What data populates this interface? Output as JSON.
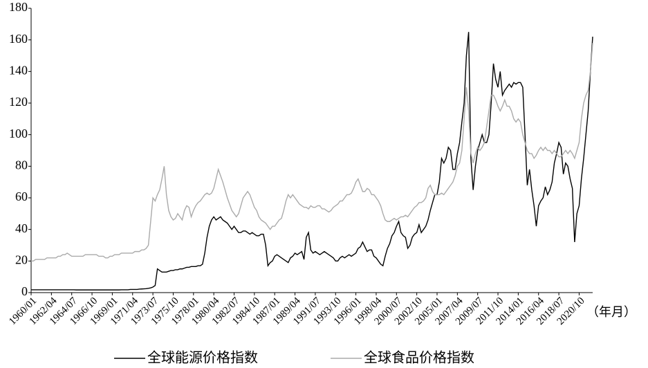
{
  "chart_data": {
    "type": "line",
    "x_label": "（年月）",
    "categories": [
      "1960/01",
      null,
      null,
      null,
      null,
      null,
      null,
      null,
      null,
      "1962/04",
      null,
      null,
      null,
      null,
      null,
      null,
      null,
      null,
      "1964/07",
      null,
      null,
      null,
      null,
      null,
      null,
      null,
      null,
      "1966/10",
      null,
      null,
      null,
      null,
      null,
      null,
      null,
      null,
      "1969/01",
      null,
      null,
      null,
      null,
      null,
      null,
      null,
      null,
      "1971/04",
      null,
      null,
      null,
      null,
      null,
      null,
      null,
      null,
      "1973/07",
      null,
      null,
      null,
      null,
      null,
      null,
      null,
      null,
      "1975/10",
      null,
      null,
      null,
      null,
      null,
      null,
      null,
      null,
      "1978/01",
      null,
      null,
      null,
      null,
      null,
      null,
      null,
      null,
      "1980/04",
      null,
      null,
      null,
      null,
      null,
      null,
      null,
      null,
      "1982/07",
      null,
      null,
      null,
      null,
      null,
      null,
      null,
      null,
      "1984/10",
      null,
      null,
      null,
      null,
      null,
      null,
      null,
      null,
      "1987/01",
      null,
      null,
      null,
      null,
      null,
      null,
      null,
      null,
      "1989/04",
      null,
      null,
      null,
      null,
      null,
      null,
      null,
      null,
      "1991/07",
      null,
      null,
      null,
      null,
      null,
      null,
      null,
      null,
      "1993/10",
      null,
      null,
      null,
      null,
      null,
      null,
      null,
      null,
      "1996/01",
      null,
      null,
      null,
      null,
      null,
      null,
      null,
      null,
      "1998/04",
      null,
      null,
      null,
      null,
      null,
      null,
      null,
      null,
      "2000/07",
      null,
      null,
      null,
      null,
      null,
      null,
      null,
      null,
      "2002/10",
      null,
      null,
      null,
      null,
      null,
      null,
      null,
      null,
      "2005/01",
      null,
      null,
      null,
      null,
      null,
      null,
      null,
      null,
      "2007/04",
      null,
      null,
      null,
      null,
      null,
      null,
      null,
      null,
      "2009/07",
      null,
      null,
      null,
      null,
      null,
      null,
      null,
      null,
      "2011/10",
      null,
      null,
      null,
      null,
      null,
      null,
      null,
      null,
      "2014/01",
      null,
      null,
      null,
      null,
      null,
      null,
      null,
      null,
      "2016/04",
      null,
      null,
      null,
      null,
      null,
      null,
      null,
      null,
      "2018/07",
      null,
      null,
      null,
      null,
      null,
      null,
      null,
      null,
      "2020/10",
      null,
      null,
      null,
      null,
      null,
      null
    ],
    "series": [
      {
        "name": "全球能源价格指数",
        "color": "#000000",
        "values": [
          1.8,
          1.8,
          1.8,
          1.8,
          1.8,
          1.8,
          1.8,
          1.8,
          1.8,
          1.8,
          1.8,
          1.8,
          1.8,
          1.8,
          1.8,
          1.8,
          1.8,
          1.8,
          1.8,
          1.8,
          1.7,
          1.7,
          1.7,
          1.7,
          1.7,
          1.7,
          1.7,
          1.7,
          1.7,
          1.7,
          1.7,
          1.7,
          1.7,
          1.7,
          1.7,
          1.7,
          1.7,
          1.7,
          1.7,
          1.7,
          1.8,
          1.8,
          1.8,
          1.8,
          2,
          2,
          2,
          2,
          2.2,
          2.3,
          2.4,
          2.5,
          2.7,
          3,
          3.5,
          4.5,
          15,
          14,
          13,
          13,
          13,
          13.5,
          14,
          14,
          14.5,
          14.5,
          15,
          15,
          15.5,
          16,
          16,
          16.5,
          16.5,
          16.5,
          17,
          17,
          18,
          25,
          35,
          42,
          46,
          48,
          46,
          47,
          48,
          46,
          45,
          44,
          42,
          40,
          42,
          40,
          38,
          38,
          39,
          39,
          38,
          37,
          38,
          37,
          36,
          36,
          37,
          37,
          30,
          17,
          19,
          20,
          23,
          24,
          23,
          22,
          21,
          20,
          19,
          22,
          23,
          25,
          24,
          25,
          26,
          21,
          35,
          38,
          27,
          25,
          26,
          25,
          24,
          25,
          26,
          25,
          24,
          23,
          22,
          20,
          20,
          22,
          23,
          22,
          23,
          24,
          23,
          24,
          25,
          28,
          29,
          32,
          29,
          26,
          27,
          27,
          23,
          22,
          20,
          18,
          17,
          23,
          28,
          31,
          36,
          38,
          42,
          45,
          38,
          36,
          35,
          28,
          30,
          35,
          37,
          38,
          43,
          38,
          40,
          42,
          46,
          52,
          57,
          62,
          62,
          70,
          85,
          82,
          85,
          92,
          90,
          78,
          78,
          88,
          95,
          108,
          120,
          150,
          165,
          85,
          65,
          80,
          90,
          95,
          100,
          95,
          95,
          100,
          120,
          145,
          135,
          130,
          140,
          125,
          128,
          130,
          132,
          130,
          133,
          132,
          133,
          133,
          130,
          100,
          68,
          78,
          65,
          55,
          42,
          55,
          58,
          60,
          67,
          62,
          65,
          70,
          82,
          88,
          95,
          92,
          75,
          82,
          80,
          72,
          66,
          32,
          50,
          55,
          72,
          85,
          100,
          115,
          140,
          162
        ]
      },
      {
        "name": "全球食品价格指数",
        "color": "#aaaaaa",
        "values": [
          20,
          20,
          21,
          21,
          21,
          21,
          21,
          22,
          22,
          22,
          22,
          22,
          23,
          23,
          24,
          24,
          25,
          24,
          23,
          23,
          23,
          23,
          23,
          23,
          24,
          24,
          24,
          24,
          24,
          24,
          23,
          23,
          23,
          22,
          22,
          23,
          23,
          24,
          24,
          24,
          25,
          25,
          25,
          25,
          25,
          25,
          26,
          26,
          26,
          27,
          27,
          28,
          30,
          45,
          60,
          58,
          62,
          65,
          72,
          80,
          62,
          52,
          48,
          46,
          47,
          50,
          48,
          46,
          52,
          55,
          54,
          48,
          52,
          55,
          57,
          58,
          60,
          62,
          63,
          62,
          63,
          66,
          72,
          78,
          74,
          70,
          65,
          60,
          56,
          52,
          50,
          48,
          50,
          55,
          60,
          62,
          64,
          62,
          58,
          54,
          52,
          48,
          46,
          45,
          44,
          42,
          40,
          42,
          42,
          44,
          46,
          47,
          52,
          58,
          62,
          60,
          62,
          60,
          58,
          56,
          55,
          54,
          54,
          53,
          55,
          54,
          54,
          55,
          55,
          53,
          53,
          52,
          51,
          52,
          54,
          55,
          56,
          58,
          58,
          60,
          62,
          62,
          63,
          66,
          70,
          72,
          68,
          64,
          64,
          66,
          65,
          62,
          62,
          60,
          58,
          55,
          50,
          46,
          45,
          45,
          46,
          47,
          46,
          47,
          48,
          48,
          49,
          48,
          50,
          52,
          54,
          55,
          57,
          57,
          58,
          60,
          66,
          68,
          64,
          62,
          62,
          62,
          63,
          62,
          64,
          66,
          68,
          70,
          74,
          80,
          82,
          90,
          110,
          130,
          115,
          88,
          82,
          88,
          92,
          90,
          92,
          95,
          105,
          115,
          125,
          125,
          122,
          118,
          115,
          118,
          122,
          118,
          118,
          115,
          110,
          108,
          110,
          108,
          100,
          95,
          90,
          88,
          88,
          85,
          87,
          90,
          92,
          90,
          92,
          90,
          90,
          88,
          90,
          88,
          86,
          86,
          88,
          90,
          88,
          90,
          88,
          85,
          90,
          95,
          110,
          120,
          125,
          128,
          140,
          158
        ]
      }
    ],
    "ylim": [
      0,
      180
    ],
    "yticks": [
      0,
      20,
      40,
      60,
      80,
      100,
      120,
      140,
      160,
      180
    ],
    "grid": false
  }
}
